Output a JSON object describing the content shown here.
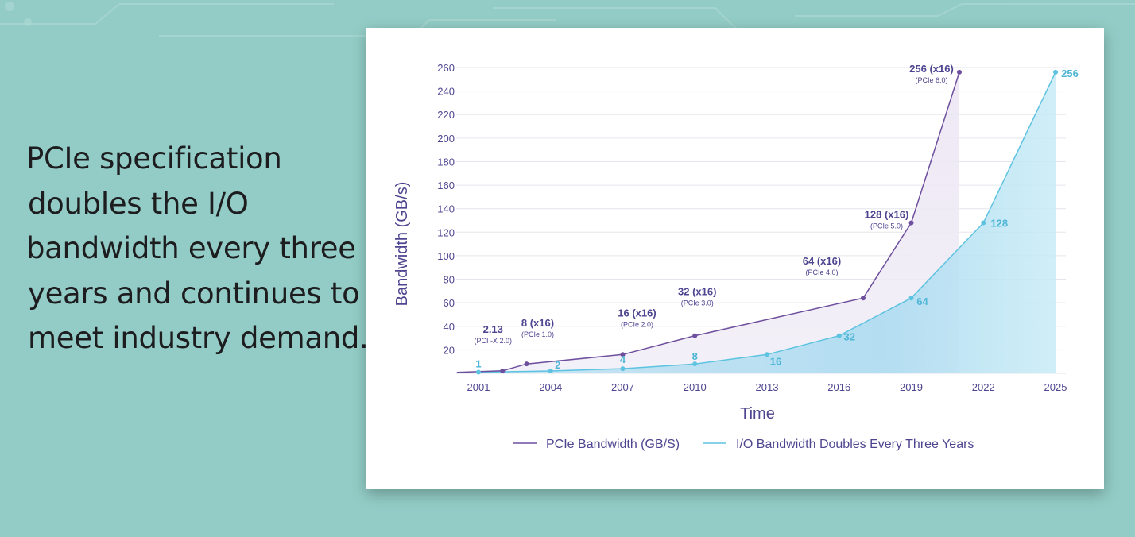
{
  "headline": {
    "lines": [
      "PCIe specification",
      "doubles the I/O",
      "bandwidth every three",
      "years and continues to",
      "meet industry demand."
    ]
  },
  "colors": {
    "background": "#93ccc6",
    "pcie": "#6e4f9e",
    "io": "#5ec3e0",
    "text": "#4e4590"
  },
  "chart_data": {
    "type": "line",
    "xlabel": "Time",
    "ylabel": "Bandwidth (GB/s)",
    "xlim": [
      2001,
      2025
    ],
    "ylim": [
      0,
      260
    ],
    "x_ticks": [
      2001,
      2004,
      2007,
      2010,
      2013,
      2016,
      2019,
      2022,
      2025
    ],
    "y_ticks": [
      20,
      40,
      60,
      80,
      100,
      120,
      140,
      160,
      180,
      200,
      220,
      240,
      260
    ],
    "grid": true,
    "legend_position": "bottom",
    "series": [
      {
        "name": "PCIe Bandwidth (GB/S)",
        "points": [
          {
            "x": 2000.1,
            "y": 0.8
          },
          {
            "x": 2002,
            "y": 2.13,
            "label": "2.13",
            "sublabel": "(PCI -X 2.0)"
          },
          {
            "x": 2003,
            "y": 8,
            "label": "8 (x16)",
            "sublabel": "(PCIe 1.0)"
          },
          {
            "x": 2007,
            "y": 16,
            "label": "16 (x16)",
            "sublabel": "(PCIe 2.0)"
          },
          {
            "x": 2010,
            "y": 32,
            "label": "32 (x16)",
            "sublabel": "(PCIe 3.0)"
          },
          {
            "x": 2017,
            "y": 64,
            "label": "64 (x16)",
            "sublabel": "(PCIe 4.0)"
          },
          {
            "x": 2019,
            "y": 128,
            "label": "128 (x16)",
            "sublabel": "(PCIe 5.0)"
          },
          {
            "x": 2021,
            "y": 256,
            "label": "256 (x16)",
            "sublabel": "(PCIe 6.0)"
          }
        ]
      },
      {
        "name": "I/O Bandwidth Doubles Every Three Years",
        "points": [
          {
            "x": 2001,
            "y": 1,
            "label": "1"
          },
          {
            "x": 2004,
            "y": 2,
            "label": "2"
          },
          {
            "x": 2007,
            "y": 4,
            "label": "4"
          },
          {
            "x": 2010,
            "y": 8,
            "label": "8"
          },
          {
            "x": 2013,
            "y": 16,
            "label": "16"
          },
          {
            "x": 2016,
            "y": 32,
            "label": "32"
          },
          {
            "x": 2019,
            "y": 64,
            "label": "64"
          },
          {
            "x": 2022,
            "y": 128,
            "label": "128"
          },
          {
            "x": 2025,
            "y": 256,
            "label": "256"
          }
        ]
      }
    ]
  }
}
